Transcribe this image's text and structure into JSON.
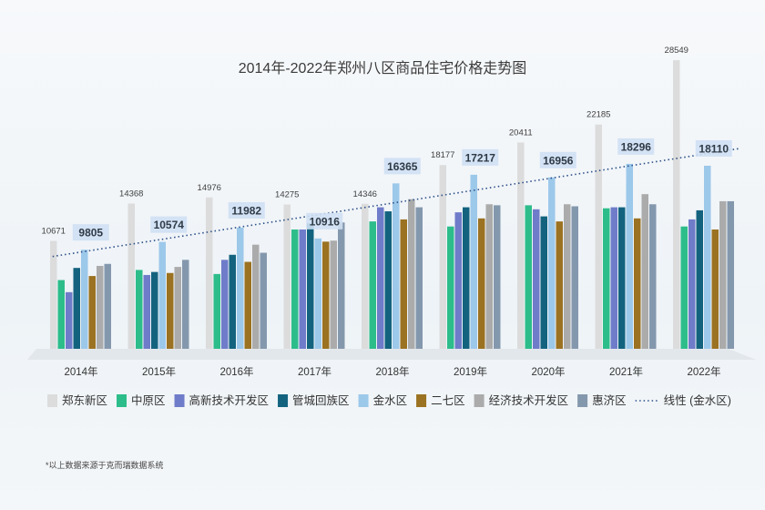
{
  "chart_data": {
    "type": "bar",
    "title": "2014年-2022年郑州八区商品住宅价格走势图",
    "categories": [
      "2014年",
      "2015年",
      "2016年",
      "2017年",
      "2018年",
      "2019年",
      "2020年",
      "2021年",
      "2022年"
    ],
    "series": [
      {
        "name": "郑东新区",
        "color": "#dcdcdc",
        "values": [
          10671,
          14368,
          14976,
          14275,
          14346,
          18177,
          20411,
          22185,
          28549
        ]
      },
      {
        "name": "中原区",
        "color": "#2dbd8a",
        "values": [
          6800,
          7800,
          7400,
          11800,
          12600,
          12100,
          14200,
          13900,
          12100
        ]
      },
      {
        "name": "高新技术开发区",
        "color": "#6f7cc9",
        "values": [
          5600,
          7300,
          8800,
          11800,
          14000,
          13500,
          13800,
          14000,
          12800
        ]
      },
      {
        "name": "管城回族区",
        "color": "#13637f",
        "values": [
          8000,
          7600,
          9300,
          12400,
          13600,
          14000,
          13100,
          14000,
          13700
        ]
      },
      {
        "name": "金水区",
        "color": "#9cc8ea",
        "values": [
          9805,
          10574,
          11982,
          10916,
          16365,
          17217,
          16956,
          18296,
          18110
        ]
      },
      {
        "name": "二七区",
        "color": "#9b7222",
        "values": [
          7200,
          7500,
          8600,
          10600,
          12800,
          12900,
          12600,
          12900,
          11800
        ]
      },
      {
        "name": "经济技术开发区",
        "color": "#ababab",
        "values": [
          8200,
          8100,
          10300,
          10700,
          14800,
          14300,
          14300,
          15300,
          14600
        ]
      },
      {
        "name": "惠济区",
        "color": "#8498ad",
        "values": [
          8400,
          8800,
          9500,
          12500,
          14000,
          14200,
          14100,
          14300,
          14600
        ]
      }
    ],
    "trendline": {
      "name": "线性 (金水区)",
      "series": "金水区"
    },
    "ylim": [
      0,
      30000
    ],
    "legend": "bottom",
    "grid": false
  },
  "footnote": "*以上数据来源于克而瑞数据系统"
}
